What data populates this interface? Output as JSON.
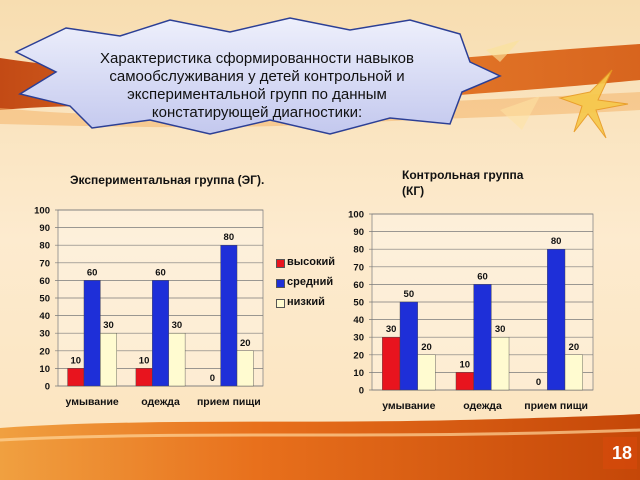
{
  "slide": {
    "title": "Характеристика сформированности навыков самообслуживания у детей контрольной и экспериментальной групп по данным констатирующей диагностики:",
    "page_number": "18",
    "colors": {
      "background": "#fbe6c4",
      "banner": "#d95a12",
      "callout_fill": "#d9dcf5",
      "callout_stroke": "#2c3f95"
    }
  },
  "legend": {
    "items": [
      {
        "label": "высокий",
        "color": "#e8141e"
      },
      {
        "label": "средний",
        "color": "#1e2fd8"
      },
      {
        "label": "низкий",
        "color": "#fffbd0"
      }
    ]
  },
  "chart_data": [
    {
      "type": "bar",
      "title": "Экспериментальная группа (ЭГ).",
      "categories": [
        "умывание",
        "одежда",
        "прием пищи"
      ],
      "series": [
        {
          "name": "высокий",
          "values": [
            10,
            10,
            0
          ]
        },
        {
          "name": "средний",
          "values": [
            60,
            60,
            80
          ]
        },
        {
          "name": "низкий",
          "values": [
            30,
            30,
            20
          ]
        }
      ],
      "ylim": [
        0,
        100
      ],
      "yticks": [
        0,
        10,
        20,
        30,
        40,
        50,
        60,
        70,
        80,
        90,
        100
      ],
      "grid": true,
      "legend": "right"
    },
    {
      "type": "bar",
      "title": "Контрольная группа (КГ)",
      "categories": [
        "умывание",
        "одежда",
        "прием пищи"
      ],
      "series": [
        {
          "name": "высокий",
          "values": [
            30,
            10,
            0
          ]
        },
        {
          "name": "средний",
          "values": [
            50,
            60,
            80
          ]
        },
        {
          "name": "низкий",
          "values": [
            20,
            30,
            20
          ]
        }
      ],
      "ylim": [
        0,
        100
      ],
      "yticks": [
        0,
        10,
        20,
        30,
        40,
        50,
        60,
        70,
        80,
        90,
        100
      ],
      "grid": true
    }
  ]
}
